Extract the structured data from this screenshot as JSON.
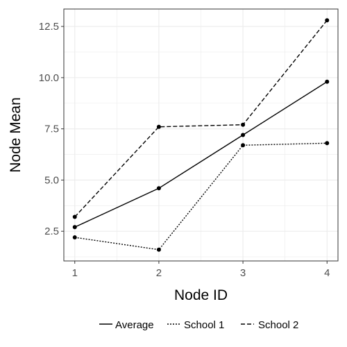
{
  "chart_data": {
    "type": "line",
    "title": "",
    "xlabel": "Node ID",
    "ylabel": "Node Mean",
    "x": [
      1,
      2,
      3,
      4
    ],
    "xticks": [
      "1",
      "2",
      "3",
      "4"
    ],
    "xlim": [
      0.87,
      4.13
    ],
    "yticks": [
      "2.5",
      "5.0",
      "7.5",
      "10.0",
      "12.5"
    ],
    "ytick_values": [
      2.5,
      5.0,
      7.5,
      10.0,
      12.5
    ],
    "ylim": [
      1.05,
      13.35
    ],
    "grid": true,
    "legend_position": "bottom",
    "series": [
      {
        "name": "Average",
        "linestyle": "solid",
        "values": [
          2.7,
          4.6,
          7.2,
          9.8
        ]
      },
      {
        "name": "School 1",
        "linestyle": "dotted",
        "values": [
          2.2,
          1.6,
          6.7,
          6.8
        ]
      },
      {
        "name": "School 2",
        "linestyle": "dashed",
        "values": [
          3.2,
          7.6,
          7.7,
          12.8
        ]
      }
    ],
    "colors": {
      "line": "#000000",
      "grid": "#ebebeb",
      "panel_border": "#333333",
      "tick_text": "#4d4d4d"
    }
  }
}
